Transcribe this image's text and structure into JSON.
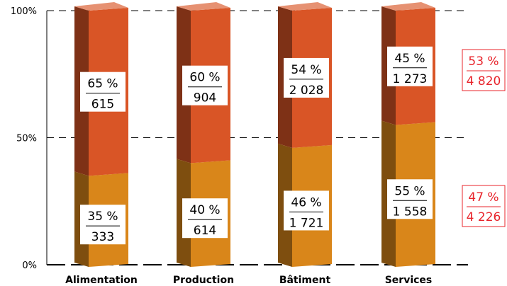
{
  "chart_data": {
    "type": "bar",
    "stacked": true,
    "percent_scale": true,
    "style": "3d",
    "categories": [
      "Alimentation",
      "Production",
      "Bâtiment",
      "Services"
    ],
    "y_ticks": [
      "0%",
      "50%",
      "100%"
    ],
    "ylim": [
      0,
      100
    ],
    "grid": "dashed lines at 50% and 100%",
    "series": [
      {
        "color": "#d9861a",
        "percent": [
          35,
          40,
          46,
          55
        ],
        "percent_labels": [
          "35 %",
          "40 %",
          "46 %",
          "55 %"
        ],
        "values": [
          "333",
          "614",
          "1 721",
          "1 558"
        ],
        "total_percent": "47 %",
        "total_value": "4 226"
      },
      {
        "color": "#d95526",
        "percent": [
          65,
          60,
          54,
          45
        ],
        "percent_labels": [
          "65 %",
          "60 %",
          "54 %",
          "45 %"
        ],
        "values": [
          "615",
          "904",
          "2 028",
          "1 273"
        ],
        "total_percent": "53 %",
        "total_value": "4 820"
      }
    ],
    "totals_color": "#e8242b"
  }
}
